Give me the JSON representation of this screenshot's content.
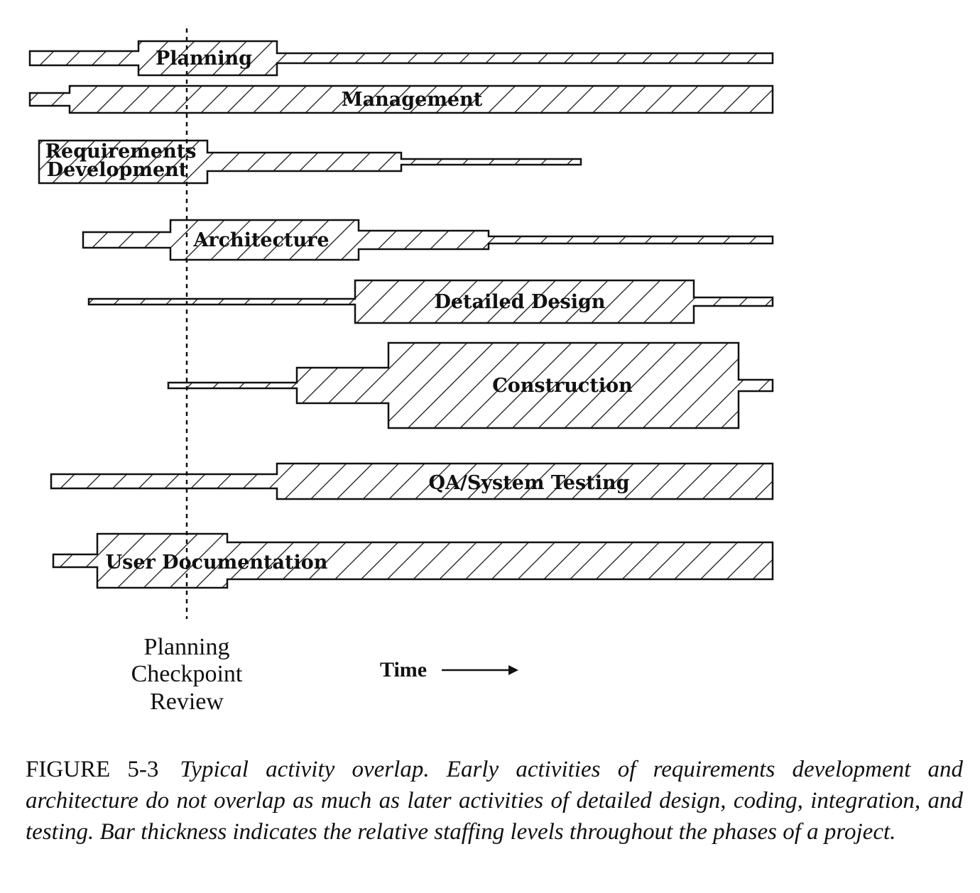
{
  "activities": [
    {
      "label": "Planning"
    },
    {
      "label": "Management"
    },
    {
      "label": "Requirements",
      "label2": "Development"
    },
    {
      "label": "Architecture"
    },
    {
      "label": "Detailed Design"
    },
    {
      "label": "Construction"
    },
    {
      "label": "QA/System Testing"
    },
    {
      "label": "User Documentation"
    }
  ],
  "checkpoint": {
    "line1": "Planning",
    "line2": "Checkpoint",
    "line3": "Review"
  },
  "time_label": "Time",
  "caption": {
    "figure_number": "FIGURE 5-3",
    "text": "Typical activity overlap. Early activities of requirements development and architecture do not overlap as much as later activities of detailed design, coding, integration, and testing. Bar thickness indicates the relative staffing levels throughout the phases of a project."
  },
  "colors": {
    "ink": "#111111",
    "background": "#ffffff"
  }
}
